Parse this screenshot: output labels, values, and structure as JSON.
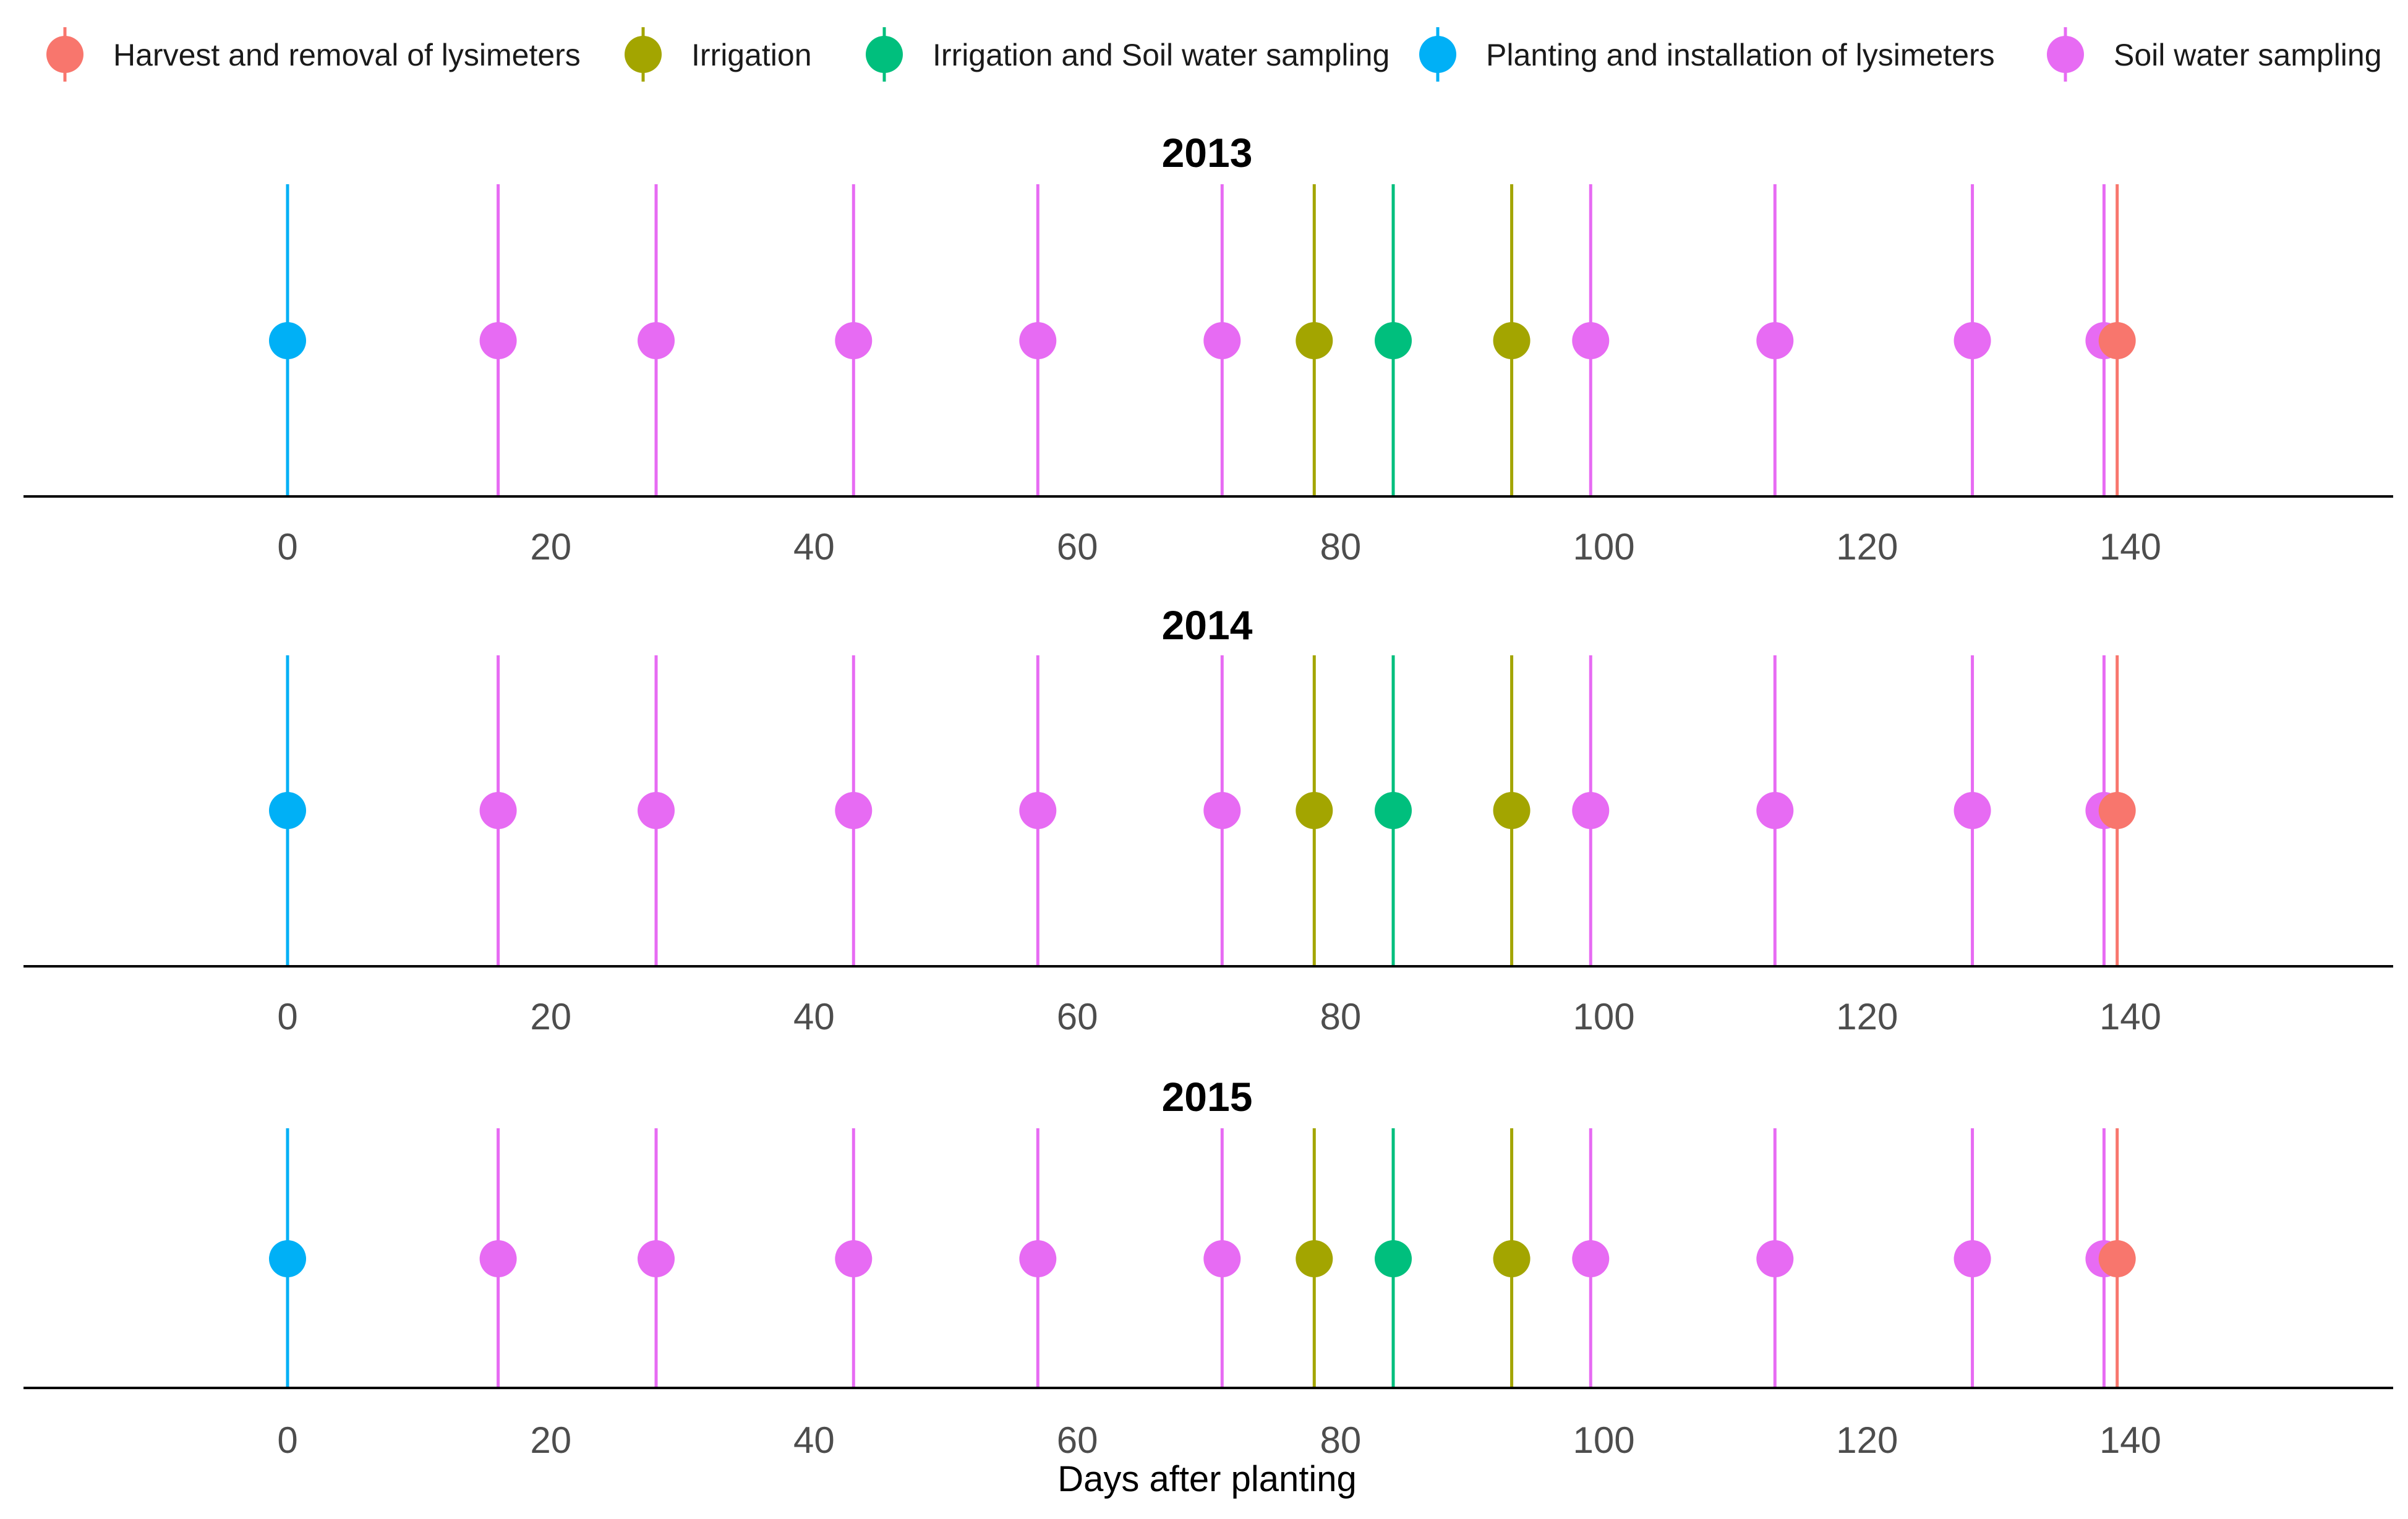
{
  "chart_data": {
    "type": "scatter",
    "subtype": "event-timeline",
    "xlabel": "Days after planting",
    "ylabel": "",
    "xlim": [
      -20,
      160
    ],
    "xticks": [
      0,
      20,
      40,
      60,
      80,
      100,
      120,
      140
    ],
    "legend_position": "top",
    "legend": [
      {
        "name": "Harvest and removal of lysimeters",
        "color": "#F8766D"
      },
      {
        "name": "Irrigation",
        "color": "#A3A500"
      },
      {
        "name": "Irrigation and Soil water sampling",
        "color": "#00BF7D"
      },
      {
        "name": "Planting and installation of lysimeters",
        "color": "#00B0F6"
      },
      {
        "name": "Soil water sampling",
        "color": "#E76BF3"
      }
    ],
    "panels": [
      {
        "title": "2013",
        "events": [
          {
            "day": 0,
            "category": "Planting and installation of lysimeters"
          },
          {
            "day": 16,
            "category": "Soil water sampling"
          },
          {
            "day": 28,
            "category": "Soil water sampling"
          },
          {
            "day": 43,
            "category": "Soil water sampling"
          },
          {
            "day": 57,
            "category": "Soil water sampling"
          },
          {
            "day": 71,
            "category": "Soil water sampling"
          },
          {
            "day": 78,
            "category": "Irrigation"
          },
          {
            "day": 84,
            "category": "Irrigation and Soil water sampling"
          },
          {
            "day": 93,
            "category": "Irrigation"
          },
          {
            "day": 99,
            "category": "Soil water sampling"
          },
          {
            "day": 113,
            "category": "Soil water sampling"
          },
          {
            "day": 128,
            "category": "Soil water sampling"
          },
          {
            "day": 138,
            "category": "Soil water sampling"
          },
          {
            "day": 139,
            "category": "Harvest and removal of lysimeters"
          }
        ]
      },
      {
        "title": "2014",
        "events": [
          {
            "day": 0,
            "category": "Planting and installation of lysimeters"
          },
          {
            "day": 16,
            "category": "Soil water sampling"
          },
          {
            "day": 28,
            "category": "Soil water sampling"
          },
          {
            "day": 43,
            "category": "Soil water sampling"
          },
          {
            "day": 57,
            "category": "Soil water sampling"
          },
          {
            "day": 71,
            "category": "Soil water sampling"
          },
          {
            "day": 78,
            "category": "Irrigation"
          },
          {
            "day": 84,
            "category": "Irrigation and Soil water sampling"
          },
          {
            "day": 93,
            "category": "Irrigation"
          },
          {
            "day": 99,
            "category": "Soil water sampling"
          },
          {
            "day": 113,
            "category": "Soil water sampling"
          },
          {
            "day": 128,
            "category": "Soil water sampling"
          },
          {
            "day": 138,
            "category": "Soil water sampling"
          },
          {
            "day": 139,
            "category": "Harvest and removal of lysimeters"
          }
        ]
      },
      {
        "title": "2015",
        "events": [
          {
            "day": 0,
            "category": "Planting and installation of lysimeters"
          },
          {
            "day": 16,
            "category": "Soil water sampling"
          },
          {
            "day": 28,
            "category": "Soil water sampling"
          },
          {
            "day": 43,
            "category": "Soil water sampling"
          },
          {
            "day": 57,
            "category": "Soil water sampling"
          },
          {
            "day": 71,
            "category": "Soil water sampling"
          },
          {
            "day": 78,
            "category": "Irrigation"
          },
          {
            "day": 84,
            "category": "Irrigation and Soil water sampling"
          },
          {
            "day": 93,
            "category": "Irrigation"
          },
          {
            "day": 99,
            "category": "Soil water sampling"
          },
          {
            "day": 113,
            "category": "Soil water sampling"
          },
          {
            "day": 128,
            "category": "Soil water sampling"
          },
          {
            "day": 138,
            "category": "Soil water sampling"
          },
          {
            "day": 139,
            "category": "Harvest and removal of lysimeters"
          }
        ]
      }
    ]
  }
}
